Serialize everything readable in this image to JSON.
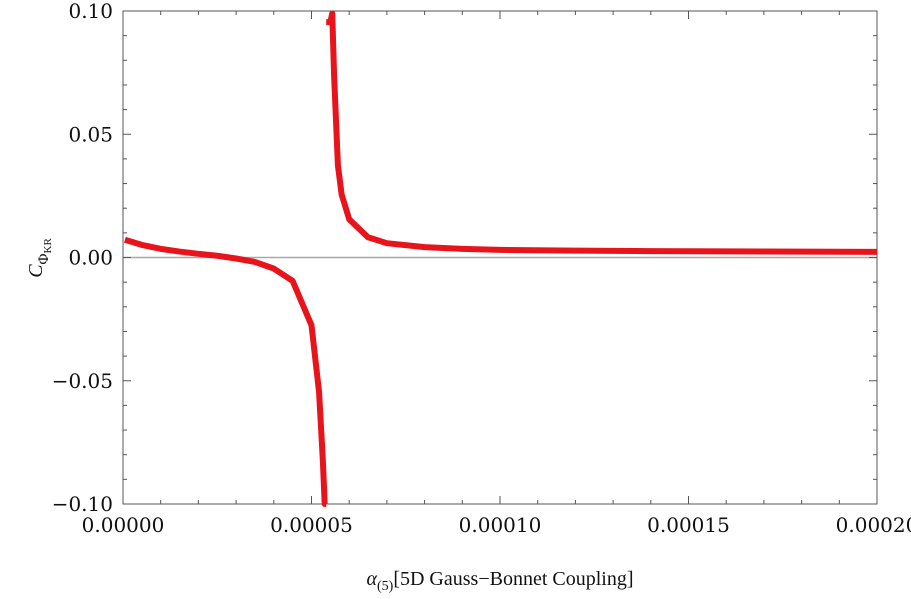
{
  "chart_data": {
    "type": "line",
    "title": "",
    "xlabel": {
      "symbol": "α",
      "subscript": "(5)",
      "text": "[5D Gauss−Bonnet Coupling]"
    },
    "ylabel": {
      "symbol": "C",
      "subscript": "Φ",
      "subsubscript": "KR"
    },
    "xlim": [
      0.0,
      0.0002
    ],
    "ylim": [
      -0.1,
      0.1
    ],
    "xticks": [
      0.0,
      5e-05,
      0.0001,
      0.00015,
      0.0002
    ],
    "xtick_labels": [
      "0.00000",
      "0.00005",
      "0.00010",
      "0.00015",
      "0.00020"
    ],
    "yticks": [
      -0.1,
      -0.05,
      0.0,
      0.05,
      0.1
    ],
    "ytick_labels": [
      "−0.10",
      "−0.05",
      "0.00",
      "0.05",
      "0.10"
    ],
    "grid": false,
    "zero_line": true,
    "series": [
      {
        "color": "#e8141b",
        "x": [
          5e-07,
          5e-06,
          1e-05,
          1.5e-05,
          2e-05,
          2.5e-05,
          3e-05,
          3.5e-05,
          4e-05,
          4.5e-05,
          5e-05,
          5.2e-05,
          5.3e-05,
          5.35e-05,
          5.375e-05,
          5.39e-05
        ],
        "y": [
          0.0072,
          0.0051,
          0.0035,
          0.0024,
          0.0015,
          0.0007,
          -0.0004,
          -0.0018,
          -0.0045,
          -0.0095,
          -0.0275,
          -0.0545,
          -0.082,
          -0.1,
          -0.1,
          -0.1
        ]
      },
      {
        "color": "#e8141b",
        "x": [
          5.39e-05,
          5.41e-05,
          5.45e-05,
          5.5e-05,
          5.55e-05,
          5.6e-05,
          5.7e-05,
          5.8e-05,
          6e-05,
          6.5e-05,
          7e-05,
          8e-05,
          9e-05,
          0.0001,
          0.00012,
          0.00014,
          0.00016,
          0.00018,
          0.0002
        ],
        "y": [
          0.0955,
          0.0955,
          0.0955,
          0.0955,
          0.099,
          0.0735,
          0.0375,
          0.0255,
          0.0155,
          0.0082,
          0.0058,
          0.0042,
          0.0035,
          0.0031,
          0.0028,
          0.0026,
          0.0025,
          0.0024,
          0.0023
        ]
      }
    ]
  }
}
